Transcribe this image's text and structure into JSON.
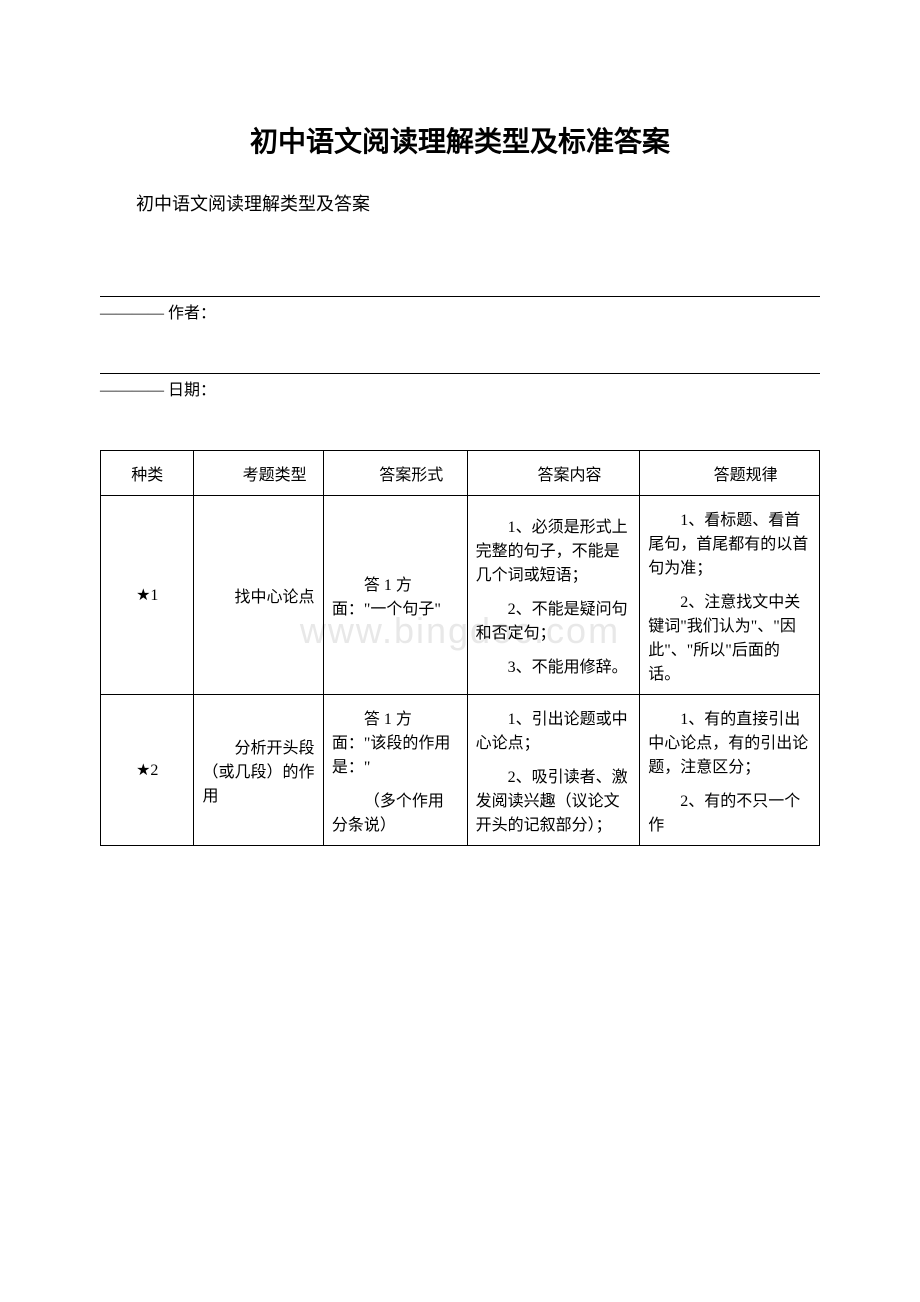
{
  "document": {
    "title": "初中语文阅读理解类型及标准答案",
    "subtitle": "初中语文阅读理解类型及答案",
    "author_label": "———— 作者：",
    "date_label": "———— 日期：",
    "watermark": "www.bingdoc.com"
  },
  "table": {
    "columns": [
      "种类",
      "考题类型",
      "答案形式",
      "答案内容",
      "答题规律"
    ],
    "rows": [
      {
        "category": "★1",
        "question_type": "找中心论点",
        "answer_form": "答 1 方面：\"一个句子\"",
        "answer_content_paras": [
          "1、必须是形式上完整的句子，不能是几个词或短语；",
          "2、不能是疑问句和否定句；",
          "3、不能用修辞。"
        ],
        "answer_rule_paras": [
          "1、看标题、看首尾句，首尾都有的以首句为准；",
          "2、注意找文中关键词\"我们认为\"、\"因此\"、\"所以\"后面的话。"
        ]
      },
      {
        "category": "★2",
        "question_type": "分析开头段（或几段）的作用",
        "answer_form_paras": [
          "答 1 方面：\"该段的作用是：\"",
          "（多个作用分条说）"
        ],
        "answer_content_paras": [
          "1、引出论题或中心论点；",
          "2、吸引读者、激发阅读兴趣（议论文开头的记叙部分）；"
        ],
        "answer_rule_paras": [
          "1、有的直接引出中心论点，有的引出论题，注意区分；",
          "2、有的不只一个作"
        ]
      }
    ]
  }
}
